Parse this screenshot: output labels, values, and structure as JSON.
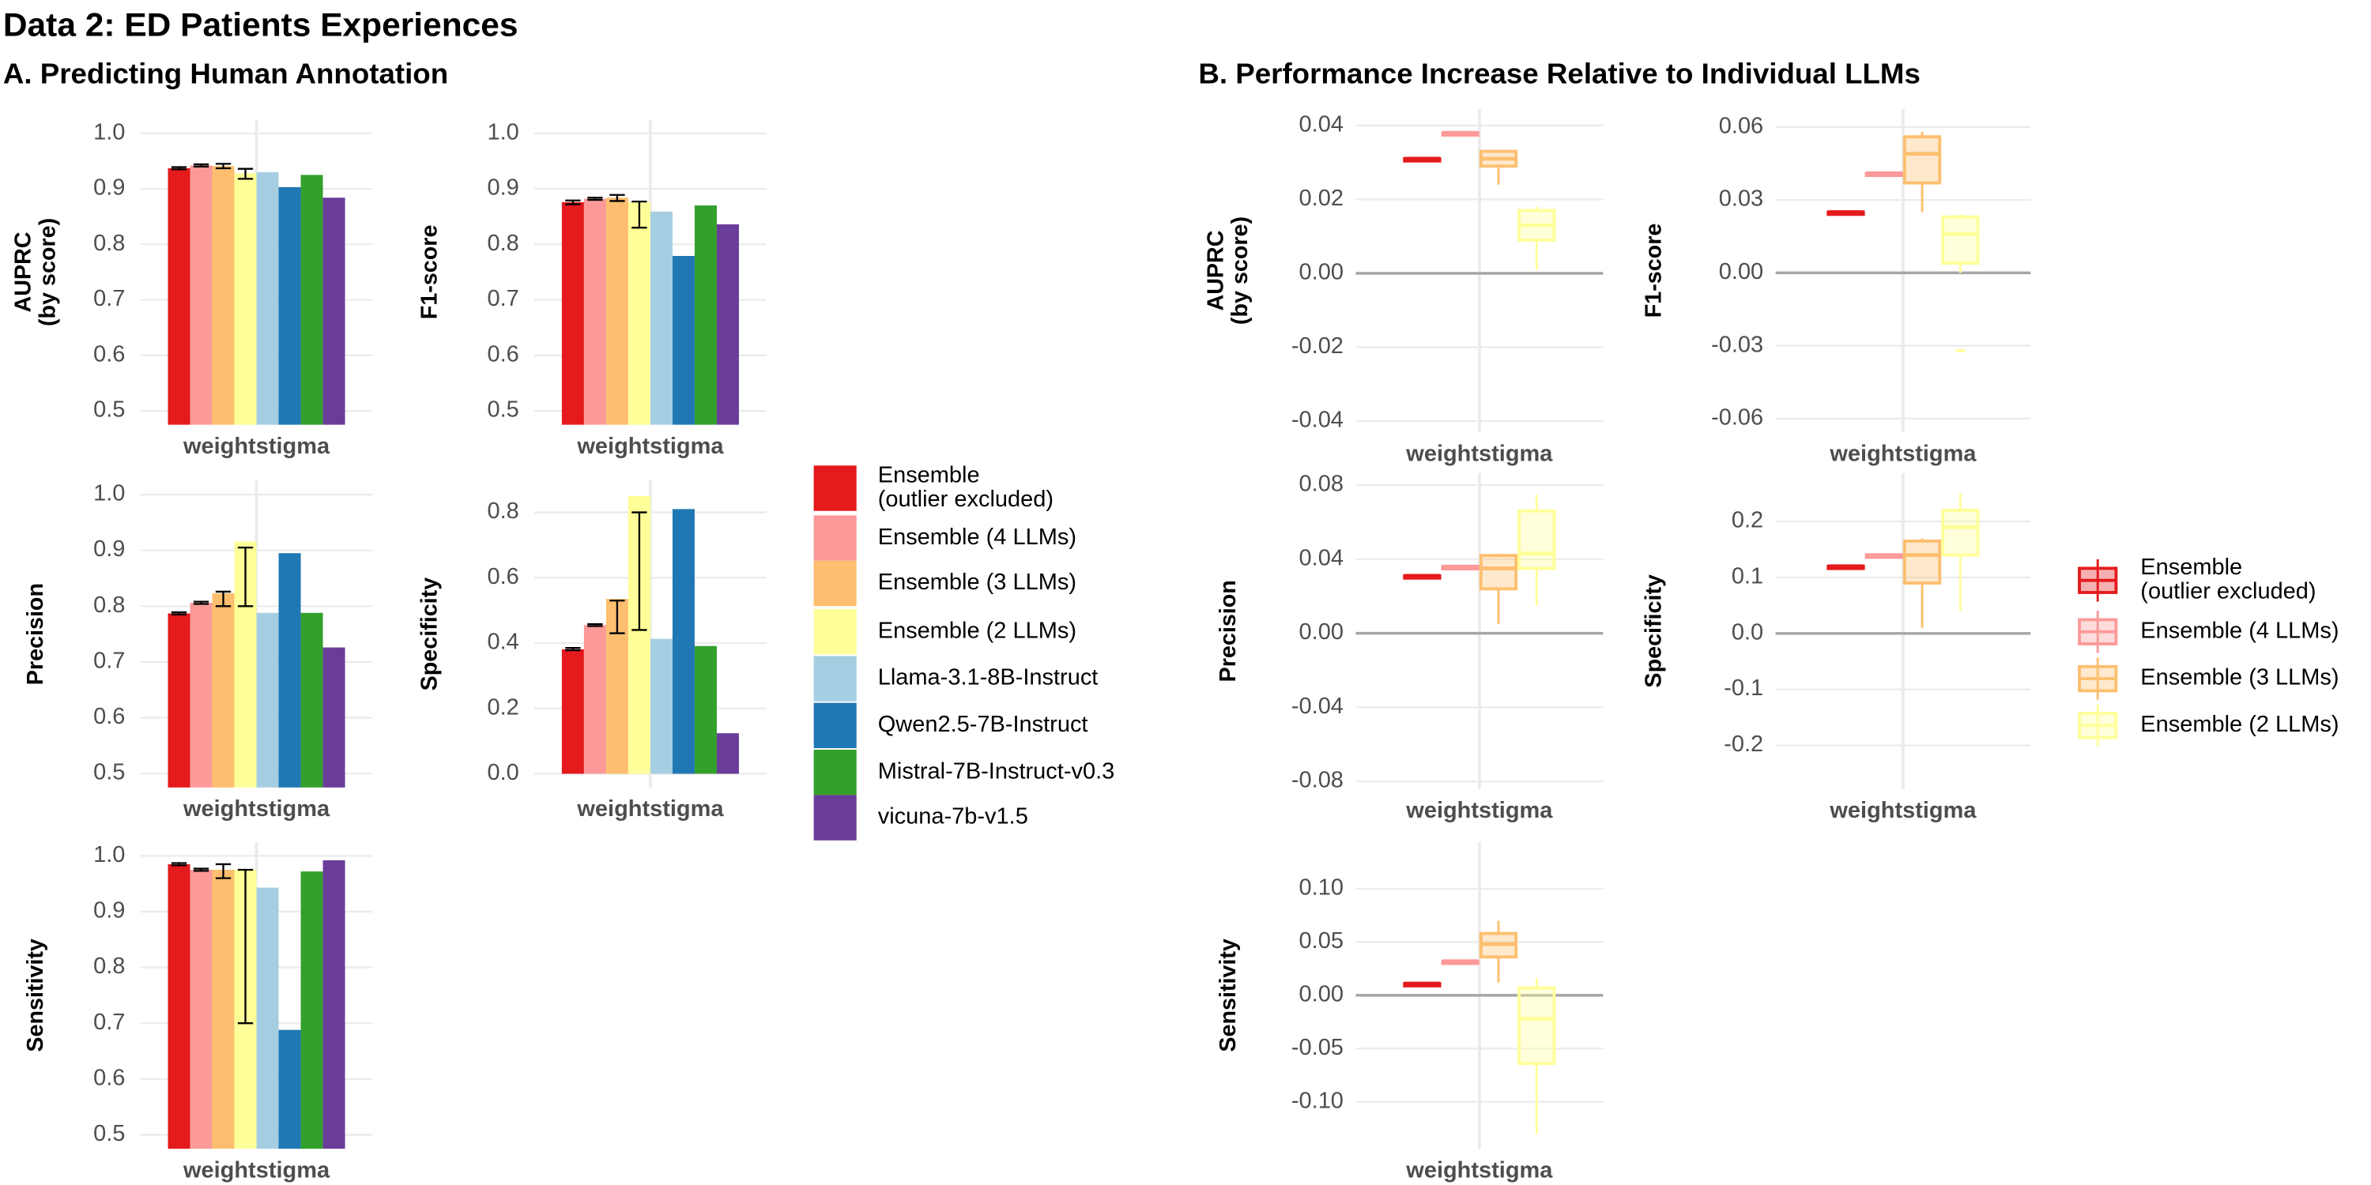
{
  "title": "Data 2: ED Patients Experiences",
  "chart_data": [
    {
      "type": "bar",
      "title": "A. Predicting Human Annotation",
      "grid": true,
      "series": [
        {
          "name": "Ensemble\n(outlier excluded)",
          "color": "#e41a1c"
        },
        {
          "name": "Ensemble (4 LLMs)",
          "color": "#fb9a99"
        },
        {
          "name": "Ensemble (3 LLMs)",
          "color": "#fdbf6f"
        },
        {
          "name": "Ensemble (2 LLMs)",
          "color": "#ffff99"
        },
        {
          "name": "Llama-3.1-8B-Instruct",
          "color": "#a6cee3"
        },
        {
          "name": "Qwen2.5-7B-Instruct",
          "color": "#1f78b4"
        },
        {
          "name": "Mistral-7B-Instruct-v0.3",
          "color": "#33a02c"
        },
        {
          "name": "vicuna-7b-v1.5",
          "color": "#6a3d9a"
        }
      ],
      "facets": [
        {
          "ylabel": "AUPRC\n(by score)",
          "categories": [
            "weightstigma"
          ],
          "values": [
            0.937,
            0.942,
            0.941,
            0.928,
            0.93,
            0.903,
            0.925,
            0.884
          ],
          "err_low": [
            0.935,
            0.94,
            0.937,
            0.918,
            null,
            null,
            null,
            null
          ],
          "err_high": [
            0.939,
            0.944,
            0.945,
            0.936,
            null,
            null,
            null,
            null
          ],
          "ylim": [
            0.475,
            1.025
          ],
          "yticks": [
            0.5,
            0.6,
            0.7,
            0.8,
            0.9,
            {
              "value": 1.0,
              "label": "1.0"
            }
          ]
        },
        {
          "ylabel": "F1-score",
          "categories": [
            "weightstigma"
          ],
          "values": [
            0.876,
            0.882,
            0.884,
            0.876,
            0.859,
            0.779,
            0.87,
            0.836
          ],
          "err_low": [
            0.872,
            0.88,
            0.878,
            0.83,
            null,
            null,
            null,
            null
          ],
          "err_high": [
            0.879,
            0.884,
            0.889,
            0.877,
            null,
            null,
            null,
            null
          ],
          "ylim": [
            0.475,
            1.025
          ],
          "yticks": [
            0.5,
            0.6,
            0.7,
            0.8,
            0.9,
            {
              "value": 1.0,
              "label": "1.0"
            }
          ]
        },
        {
          "ylabel": "Precision",
          "categories": [
            "weightstigma"
          ],
          "values": [
            0.787,
            0.806,
            0.823,
            0.916,
            0.788,
            0.895,
            0.788,
            0.726
          ],
          "err_low": [
            0.785,
            0.804,
            0.8,
            0.8,
            null,
            null,
            null,
            null
          ],
          "err_high": [
            0.789,
            0.808,
            0.826,
            0.905,
            null,
            null,
            null,
            null
          ],
          "ylim": [
            0.475,
            1.025
          ],
          "yticks": [
            0.5,
            0.6,
            0.7,
            0.8,
            0.9,
            {
              "value": 1.0,
              "label": "1.0"
            }
          ]
        },
        {
          "ylabel": "Specificity",
          "categories": [
            "weightstigma"
          ],
          "values": [
            0.381,
            0.455,
            0.535,
            0.85,
            0.413,
            0.81,
            0.391,
            0.124
          ],
          "err_low": [
            0.378,
            0.452,
            0.43,
            0.44,
            null,
            null,
            null,
            null
          ],
          "err_high": [
            0.385,
            0.458,
            0.53,
            0.8,
            null,
            null,
            null,
            null
          ],
          "ylim": [
            -0.042,
            0.897
          ],
          "yticks": [
            {
              "value": 0,
              "label": "0.0"
            },
            0.2,
            0.4,
            0.6,
            0.8
          ]
        },
        {
          "ylabel": "Sensitivity",
          "categories": [
            "weightstigma"
          ],
          "values": [
            0.985,
            0.975,
            0.975,
            0.975,
            0.943,
            0.688,
            0.972,
            0.992
          ],
          "err_low": [
            0.983,
            0.973,
            0.96,
            0.7,
            null,
            null,
            null,
            null
          ],
          "err_high": [
            0.987,
            0.977,
            0.985,
            0.975,
            null,
            null,
            null,
            null
          ],
          "ylim": [
            0.475,
            1.025
          ],
          "yticks": [
            0.5,
            0.6,
            0.7,
            0.8,
            0.9,
            {
              "value": 1.0,
              "label": "1.0"
            }
          ]
        }
      ]
    },
    {
      "type": "box",
      "title": "B. Performance Increase Relative to Individual LLMs",
      "grid": true,
      "zero_line": true,
      "series": [
        {
          "name": "Ensemble\n(outlier excluded)",
          "color": "#e41a1c"
        },
        {
          "name": "Ensemble (4 LLMs)",
          "color": "#fb9a99"
        },
        {
          "name": "Ensemble (3 LLMs)",
          "color": "#fdbf6f"
        },
        {
          "name": "Ensemble (2 LLMs)",
          "color": "#ffff99"
        }
      ],
      "facets": [
        {
          "ylabel": "AUPRC\n(by score)",
          "categories": [
            "weightstigma"
          ],
          "min": [
            0.031,
            0.038,
            0.024,
            0.001
          ],
          "q1": [
            0.031,
            0.038,
            0.029,
            0.009
          ],
          "median": [
            0.031,
            0.038,
            0.031,
            0.013
          ],
          "q3": [
            0.031,
            0.038,
            0.033,
            0.017
          ],
          "max": [
            0.031,
            0.038,
            0.033,
            0.018
          ],
          "outliers": [
            [],
            [],
            [],
            []
          ],
          "ylim": [
            -0.043,
            0.0445
          ],
          "yticks": [
            -0.04,
            -0.02,
            {
              "value": 0,
              "label": "0.00"
            },
            0.02,
            0.04
          ]
        },
        {
          "ylabel": "F1-score",
          "categories": [
            "weightstigma"
          ],
          "min": [
            0.025,
            0.041,
            0.025,
            0.0
          ],
          "q1": [
            0.025,
            0.041,
            0.037,
            0.004
          ],
          "median": [
            0.025,
            0.041,
            0.049,
            0.016
          ],
          "q3": [
            0.025,
            0.041,
            0.056,
            0.023
          ],
          "max": [
            0.025,
            0.041,
            0.058,
            0.024
          ],
          "outliers": [
            [],
            [],
            [],
            [
              -0.032
            ]
          ],
          "ylim": [
            -0.0656,
            0.0675
          ],
          "yticks": [
            -0.06,
            -0.03,
            {
              "value": 0,
              "label": "0.00"
            },
            0.03,
            0.06
          ]
        },
        {
          "ylabel": "Precision",
          "categories": [
            "weightstigma"
          ],
          "min": [
            0.031,
            0.036,
            0.005,
            0.015
          ],
          "q1": [
            0.031,
            0.036,
            0.024,
            0.035
          ],
          "median": [
            0.031,
            0.036,
            0.035,
            0.043
          ],
          "q3": [
            0.031,
            0.036,
            0.042,
            0.066
          ],
          "max": [
            0.031,
            0.036,
            0.043,
            0.075
          ],
          "outliers": [
            [],
            [],
            [],
            []
          ],
          "ylim": [
            -0.0841,
            0.0865
          ],
          "yticks": [
            -0.08,
            -0.04,
            {
              "value": 0,
              "label": "0.00"
            },
            0.04,
            0.08
          ]
        },
        {
          "ylabel": "Specificity",
          "categories": [
            "weightstigma"
          ],
          "min": [
            0.12,
            0.14,
            0.01,
            0.04
          ],
          "q1": [
            0.12,
            0.14,
            0.09,
            0.14
          ],
          "median": [
            0.12,
            0.14,
            0.14,
            0.19
          ],
          "q3": [
            0.12,
            0.14,
            0.165,
            0.22
          ],
          "max": [
            0.12,
            0.14,
            0.17,
            0.25
          ],
          "outliers": [
            [],
            [],
            [],
            []
          ],
          "ylim": [
            -0.278,
            0.2865
          ],
          "yticks": [
            -0.2,
            -0.1,
            {
              "value": 0,
              "label": "0.0"
            },
            0.1,
            0.2
          ]
        },
        {
          "ylabel": "Sensitivity",
          "categories": [
            "weightstigma"
          ],
          "min": [
            0.011,
            0.032,
            0.012,
            -0.13
          ],
          "q1": [
            0.011,
            0.032,
            0.036,
            -0.064
          ],
          "median": [
            0.011,
            0.032,
            0.048,
            -0.022
          ],
          "q3": [
            0.011,
            0.032,
            0.058,
            0.007
          ],
          "max": [
            0.011,
            0.032,
            0.07,
            0.016
          ],
          "outliers": [
            [],
            [],
            [],
            []
          ],
          "ylim": [
            -0.144,
            0.144
          ],
          "yticks": [
            {
              "value": -0.1,
              "label": "-0.10"
            },
            -0.05,
            {
              "value": 0,
              "label": "0.00"
            },
            0.05,
            {
              "value": 0.1,
              "label": "0.10"
            }
          ]
        }
      ]
    }
  ]
}
